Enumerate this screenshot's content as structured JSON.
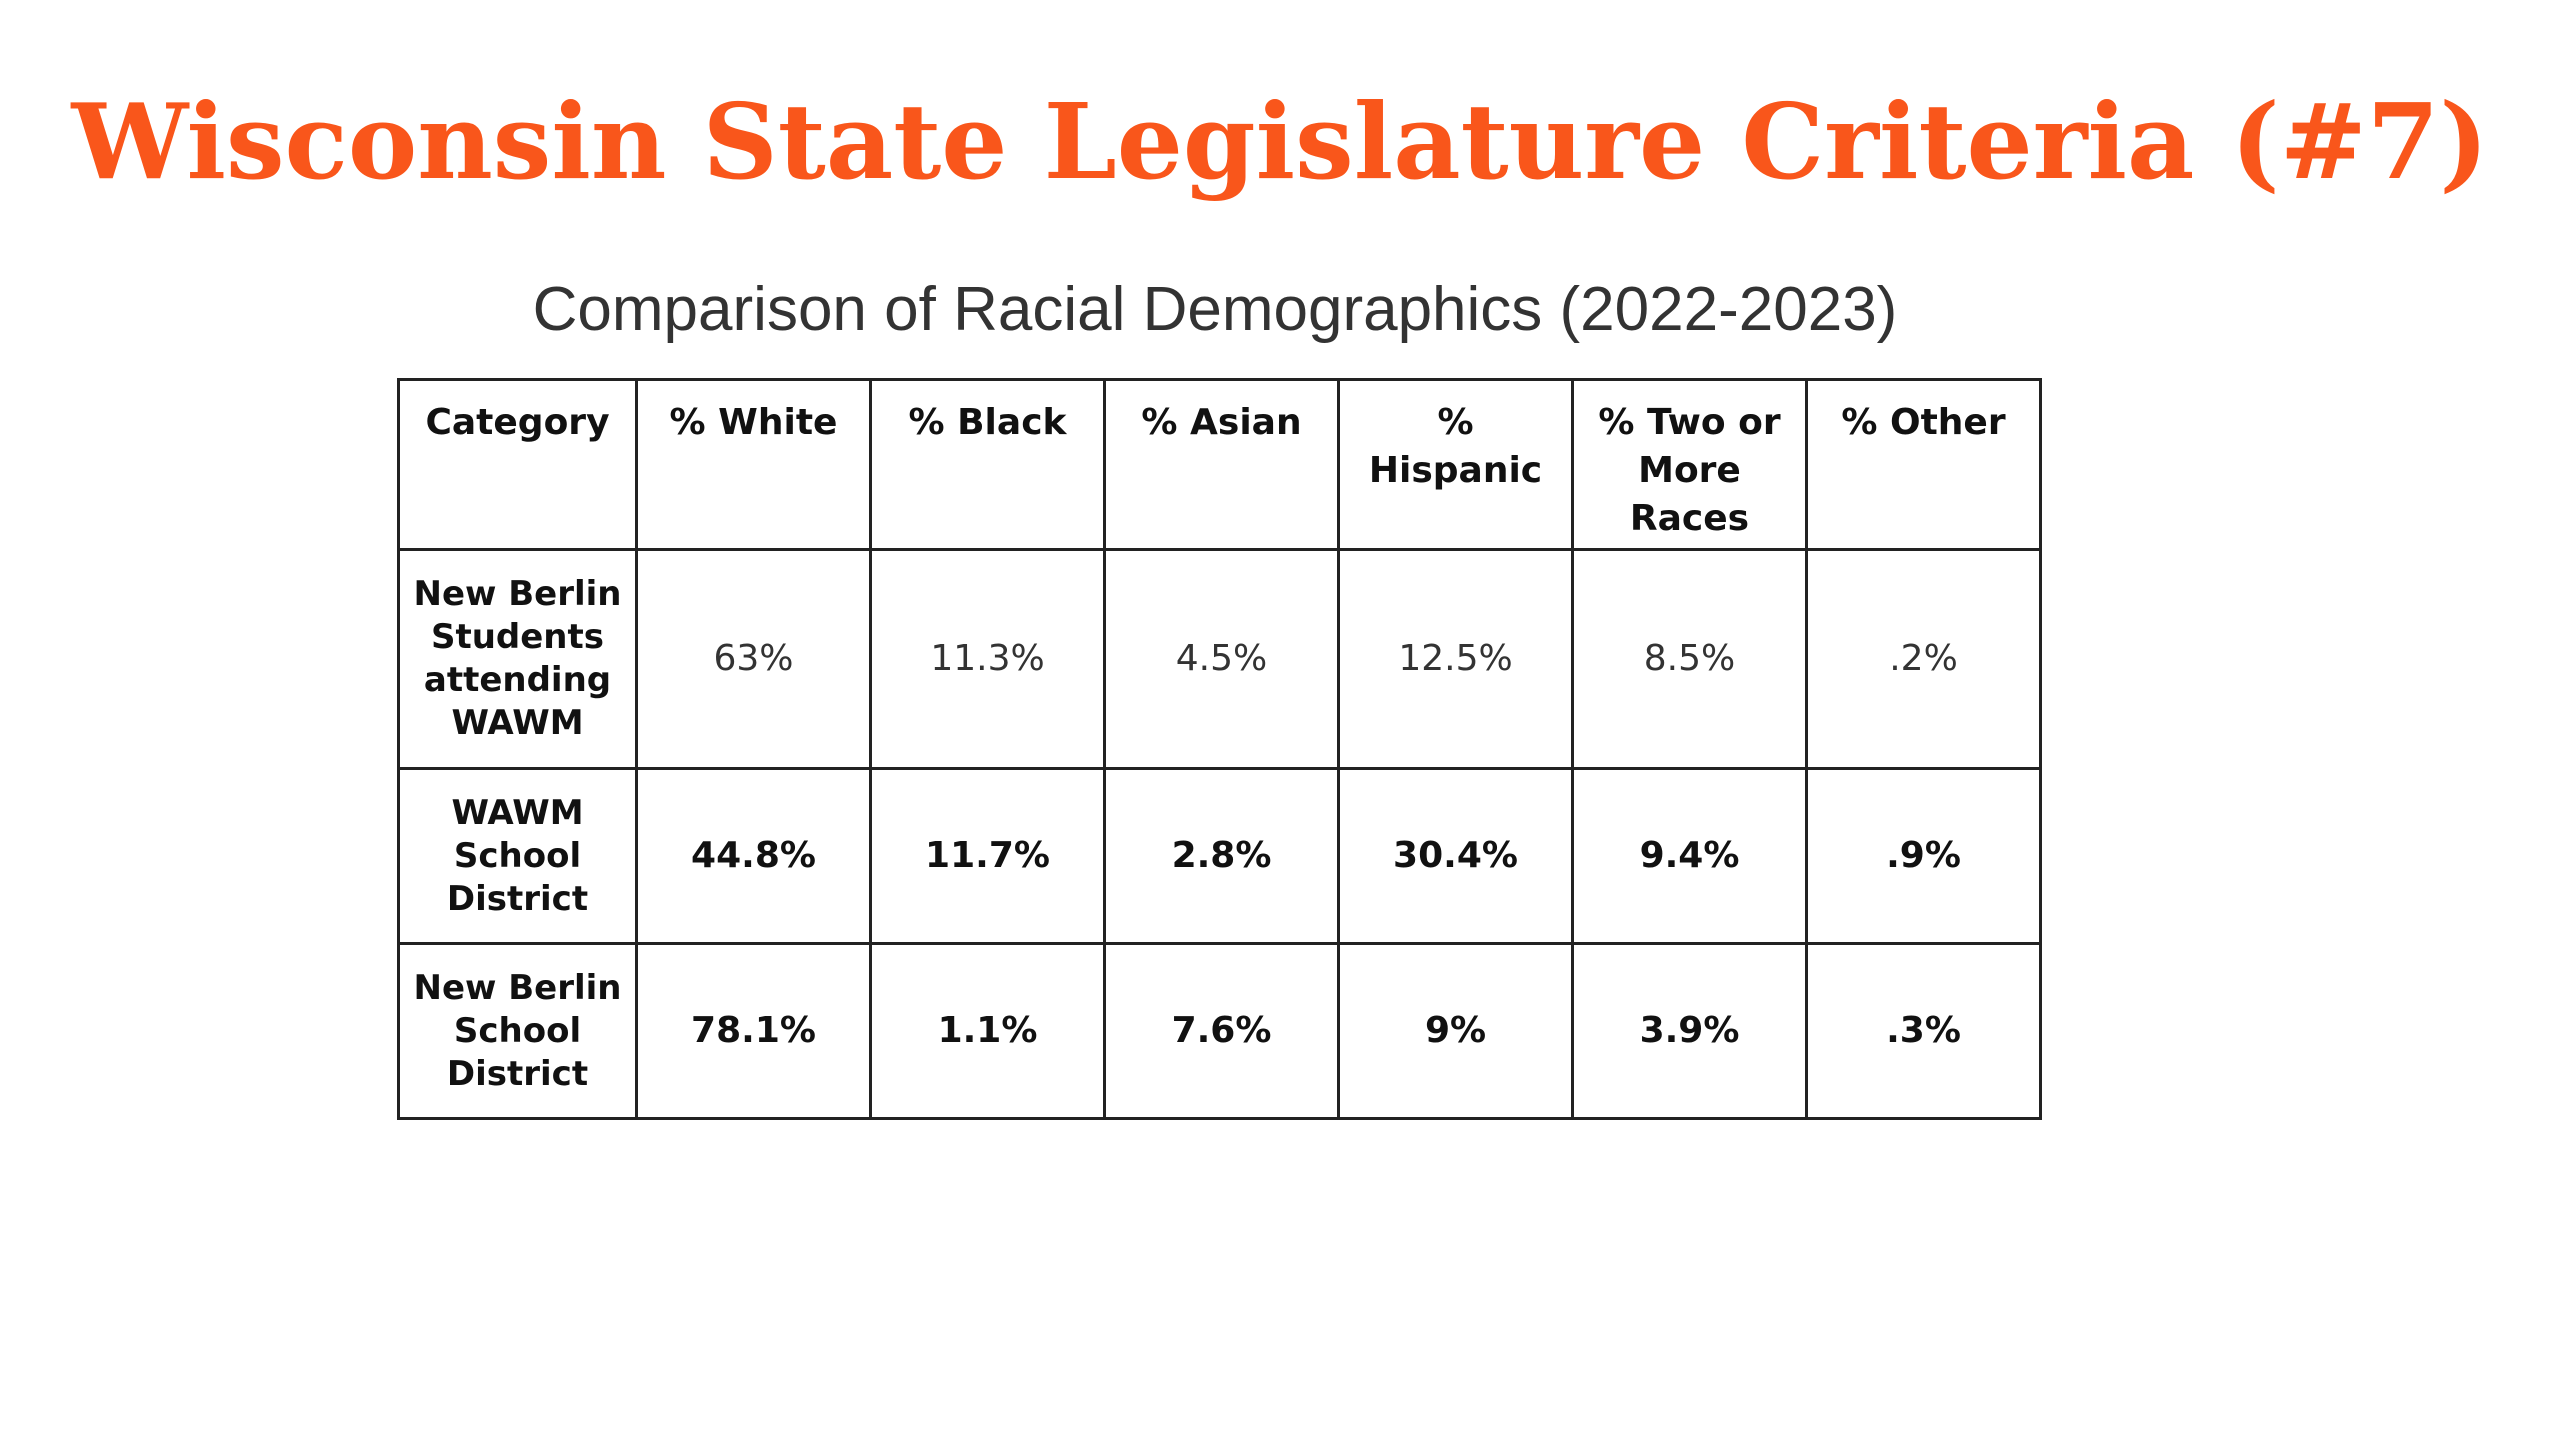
{
  "slide": {
    "title": "Wisconsin State Legislature Criteria (#7)"
  },
  "table": {
    "title": "Comparison of Racial Demographics (2022-2023)",
    "headers": [
      "Category",
      "% White",
      "% Black",
      "% Asian",
      "% Hispanic",
      "% Two or More Races",
      "% Other"
    ],
    "rows": [
      {
        "category": "New Berlin Students attending WAWM",
        "values": [
          "63%",
          "11.3%",
          "4.5%",
          "12.5%",
          "8.5%",
          ".2%"
        ]
      },
      {
        "category": "WAWM School District",
        "values": [
          "44.8%",
          "11.7%",
          "2.8%",
          "30.4%",
          "9.4%",
          ".9%"
        ]
      },
      {
        "category": "New Berlin School District",
        "values": [
          "78.1%",
          "1.1%",
          "7.6%",
          "9%",
          "3.9%",
          ".3%"
        ]
      }
    ]
  },
  "colors": {
    "title_orange": "#f9561b",
    "text_dark": "#333333",
    "border": "#222222"
  }
}
